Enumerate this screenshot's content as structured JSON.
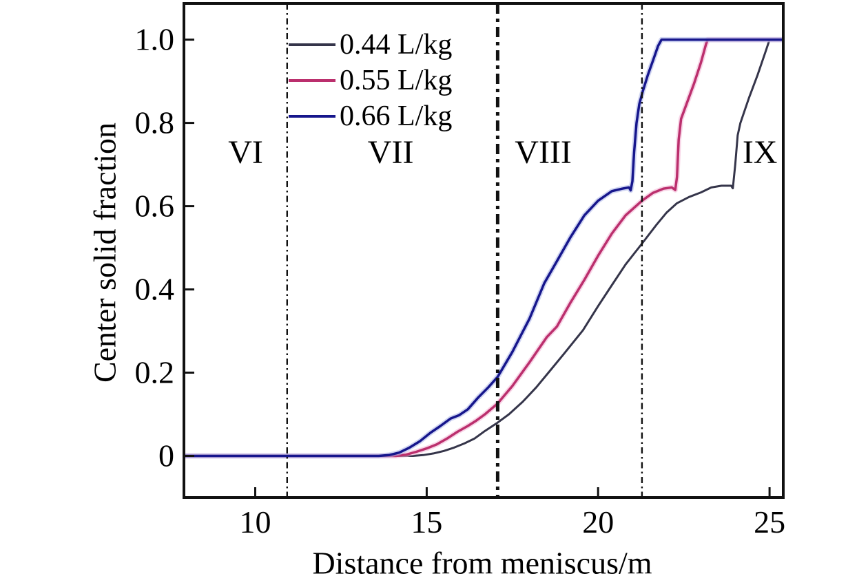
{
  "figure": {
    "background": "#ffffff",
    "frame_color": "#111111"
  },
  "chart_data": {
    "type": "line",
    "title": "",
    "xlabel": "Distance from meniscus/m",
    "ylabel": "Center solid fraction",
    "xlim": [
      7.92,
      25.4
    ],
    "ylim": [
      -0.1,
      1.087
    ],
    "grid": false,
    "legend_position": "inside-top-left",
    "xticks": [
      {
        "value": 10,
        "label": "10"
      },
      {
        "value": 15,
        "label": "15"
      },
      {
        "value": 20,
        "label": "20"
      },
      {
        "value": 25,
        "label": "25"
      }
    ],
    "yticks": [
      {
        "value": 0.0,
        "label": "0"
      },
      {
        "value": 0.2,
        "label": "0.2"
      },
      {
        "value": 0.4,
        "label": "0.4"
      },
      {
        "value": 0.6,
        "label": "0.6"
      },
      {
        "value": 0.8,
        "label": "0.8"
      },
      {
        "value": 1.0,
        "label": "1.0"
      }
    ],
    "zone_boundaries": [
      {
        "x": 10.93,
        "weight": "thin"
      },
      {
        "x": 17.07,
        "weight": "bold"
      },
      {
        "x": 21.28,
        "weight": "thin"
      }
    ],
    "zone_labels": [
      {
        "text": "VI",
        "x": 9.72,
        "y": 0.728
      },
      {
        "text": "VII",
        "x": 13.95,
        "y": 0.728
      },
      {
        "text": "VIII",
        "x": 18.4,
        "y": 0.728
      },
      {
        "text": "IX",
        "x": 24.72,
        "y": 0.728
      }
    ],
    "series": [
      {
        "name": "0.44 L/kg",
        "color": "#35354a",
        "glow": null,
        "width": 3,
        "points": [
          [
            7.92,
            0
          ],
          [
            14.6,
            0
          ],
          [
            14.9,
            0.002
          ],
          [
            15.2,
            0.006
          ],
          [
            15.5,
            0.012
          ],
          [
            15.8,
            0.02
          ],
          [
            16.1,
            0.03
          ],
          [
            16.4,
            0.042
          ],
          [
            16.7,
            0.06
          ],
          [
            17.07,
            0.08
          ],
          [
            17.4,
            0.1
          ],
          [
            17.8,
            0.13
          ],
          [
            18.2,
            0.165
          ],
          [
            18.6,
            0.205
          ],
          [
            19.0,
            0.245
          ],
          [
            19.56,
            0.302
          ],
          [
            20.0,
            0.36
          ],
          [
            20.4,
            0.41
          ],
          [
            20.8,
            0.46
          ],
          [
            21.28,
            0.51
          ],
          [
            21.7,
            0.555
          ],
          [
            22.0,
            0.585
          ],
          [
            22.3,
            0.607
          ],
          [
            22.65,
            0.622
          ],
          [
            23.0,
            0.633
          ],
          [
            23.3,
            0.645
          ],
          [
            23.6,
            0.649
          ],
          [
            23.88,
            0.649
          ],
          [
            23.93,
            0.643
          ],
          [
            24.0,
            0.7
          ],
          [
            24.07,
            0.77
          ],
          [
            24.15,
            0.8
          ],
          [
            24.4,
            0.86
          ],
          [
            24.65,
            0.915
          ],
          [
            24.9,
            0.975
          ],
          [
            25.0,
            1.0
          ],
          [
            25.4,
            1.0
          ]
        ]
      },
      {
        "name": "0.55 L/kg",
        "color": "#bb2f6d",
        "glow": "#f3b3d3",
        "width": 3.5,
        "points": [
          [
            7.92,
            0
          ],
          [
            14.1,
            0
          ],
          [
            14.4,
            0.003
          ],
          [
            14.7,
            0.01
          ],
          [
            15.0,
            0.018
          ],
          [
            15.3,
            0.028
          ],
          [
            15.6,
            0.042
          ],
          [
            15.9,
            0.058
          ],
          [
            16.2,
            0.072
          ],
          [
            16.45,
            0.085
          ],
          [
            16.7,
            0.1
          ],
          [
            17.07,
            0.126
          ],
          [
            17.5,
            0.168
          ],
          [
            18.0,
            0.225
          ],
          [
            18.5,
            0.285
          ],
          [
            18.8,
            0.311
          ],
          [
            19.2,
            0.369
          ],
          [
            19.6,
            0.423
          ],
          [
            20.0,
            0.481
          ],
          [
            20.4,
            0.534
          ],
          [
            20.8,
            0.578
          ],
          [
            21.28,
            0.613
          ],
          [
            21.6,
            0.632
          ],
          [
            21.9,
            0.642
          ],
          [
            22.15,
            0.645
          ],
          [
            22.25,
            0.639
          ],
          [
            22.3,
            0.67
          ],
          [
            22.35,
            0.76
          ],
          [
            22.42,
            0.81
          ],
          [
            22.6,
            0.85
          ],
          [
            22.8,
            0.895
          ],
          [
            23.0,
            0.945
          ],
          [
            23.15,
            0.99
          ],
          [
            23.2,
            1.0
          ],
          [
            25.4,
            1.0
          ]
        ]
      },
      {
        "name": "0.66 L/kg",
        "color": "#16168c",
        "glow": "#aab2e8",
        "width": 3.5,
        "points": [
          [
            7.92,
            0
          ],
          [
            13.6,
            0
          ],
          [
            13.9,
            0.002
          ],
          [
            14.2,
            0.008
          ],
          [
            14.5,
            0.02
          ],
          [
            14.8,
            0.035
          ],
          [
            15.1,
            0.055
          ],
          [
            15.4,
            0.072
          ],
          [
            15.7,
            0.09
          ],
          [
            15.95,
            0.098
          ],
          [
            16.2,
            0.112
          ],
          [
            16.5,
            0.14
          ],
          [
            16.8,
            0.165
          ],
          [
            17.07,
            0.19
          ],
          [
            17.5,
            0.25
          ],
          [
            18.0,
            0.33
          ],
          [
            18.43,
            0.415
          ],
          [
            18.8,
            0.468
          ],
          [
            19.2,
            0.526
          ],
          [
            19.6,
            0.578
          ],
          [
            20.0,
            0.613
          ],
          [
            20.4,
            0.636
          ],
          [
            20.7,
            0.642
          ],
          [
            20.9,
            0.645
          ],
          [
            20.95,
            0.638
          ],
          [
            21.0,
            0.66
          ],
          [
            21.05,
            0.73
          ],
          [
            21.12,
            0.8
          ],
          [
            21.2,
            0.845
          ],
          [
            21.3,
            0.875
          ],
          [
            21.45,
            0.915
          ],
          [
            21.6,
            0.95
          ],
          [
            21.75,
            0.985
          ],
          [
            21.85,
            1.0
          ],
          [
            25.4,
            1.0
          ]
        ]
      }
    ]
  }
}
